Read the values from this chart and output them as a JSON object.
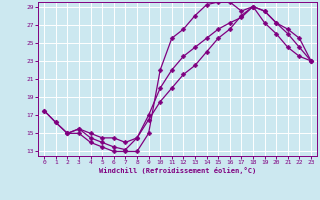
{
  "xlabel": "Windchill (Refroidissement éolien,°C)",
  "bg_color": "#cce8f0",
  "line_color": "#800080",
  "grid_color": "#ffffff",
  "xlim": [
    -0.5,
    23.5
  ],
  "ylim": [
    12.5,
    29.5
  ],
  "xticks": [
    0,
    1,
    2,
    3,
    4,
    5,
    6,
    7,
    8,
    9,
    10,
    11,
    12,
    13,
    14,
    15,
    16,
    17,
    18,
    19,
    20,
    21,
    22,
    23
  ],
  "yticks": [
    13,
    15,
    17,
    19,
    21,
    23,
    25,
    27,
    29
  ],
  "line1_x": [
    0,
    1,
    2,
    3,
    4,
    5,
    6,
    7,
    8,
    9,
    10,
    11,
    12,
    13,
    14,
    15,
    16,
    17,
    18,
    19,
    20,
    21,
    22,
    23
  ],
  "line1_y": [
    17.5,
    16.2,
    15.0,
    15.0,
    14.0,
    13.5,
    13.0,
    13.0,
    13.0,
    15.0,
    22.0,
    25.5,
    26.5,
    28.0,
    29.2,
    29.5,
    29.5,
    28.5,
    29.0,
    27.2,
    26.0,
    24.5,
    23.5,
    23.0
  ],
  "line2_x": [
    0,
    1,
    2,
    3,
    4,
    5,
    6,
    7,
    8,
    9,
    10,
    11,
    12,
    13,
    14,
    15,
    16,
    17,
    18,
    19,
    20,
    21,
    22,
    23
  ],
  "line2_y": [
    17.5,
    16.2,
    15.0,
    15.5,
    14.5,
    14.0,
    13.5,
    13.2,
    14.5,
    17.0,
    20.0,
    22.0,
    23.5,
    24.5,
    25.5,
    26.5,
    27.2,
    27.8,
    29.0,
    28.5,
    27.2,
    26.5,
    25.5,
    23.0
  ],
  "line3_x": [
    2,
    3,
    4,
    5,
    6,
    7,
    8,
    9,
    10,
    11,
    12,
    13,
    14,
    15,
    16,
    17,
    18,
    19,
    20,
    21,
    22,
    23
  ],
  "line3_y": [
    15.0,
    15.5,
    15.0,
    14.5,
    14.5,
    14.0,
    14.5,
    16.5,
    18.5,
    20.0,
    21.5,
    22.5,
    24.0,
    25.5,
    26.5,
    28.0,
    29.0,
    28.5,
    27.2,
    26.0,
    24.5,
    23.0
  ],
  "marker_size": 2.5,
  "line_width": 0.9
}
